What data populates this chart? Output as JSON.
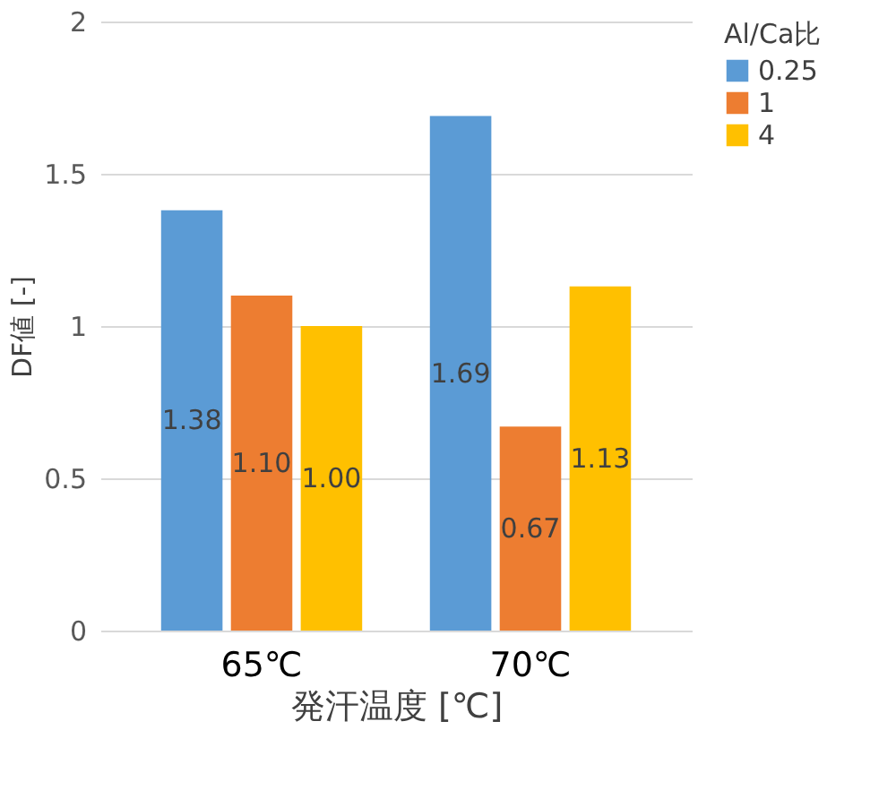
{
  "chart_data": {
    "type": "bar",
    "xlabel": "発汗温度 [℃]",
    "ylabel": "DF値 [-]",
    "legend_title": "Al/Ca比",
    "categories": [
      "65℃",
      "70℃"
    ],
    "series": [
      {
        "name": "0.25",
        "color": "#5b9bd5",
        "values": [
          1.38,
          1.69
        ],
        "value_labels": [
          "1.38",
          "1.69"
        ]
      },
      {
        "name": "1",
        "color": "#ed7d31",
        "values": [
          1.1,
          0.67
        ],
        "value_labels": [
          "1.10",
          "0.67"
        ]
      },
      {
        "name": "4",
        "color": "#ffc000",
        "values": [
          1.0,
          1.13
        ],
        "value_labels": [
          "1.00",
          "1.13"
        ]
      }
    ],
    "ylim": [
      0,
      2
    ],
    "yticks": [
      0,
      0.5,
      1,
      1.5,
      2
    ],
    "grid": "y",
    "legend": "right"
  }
}
